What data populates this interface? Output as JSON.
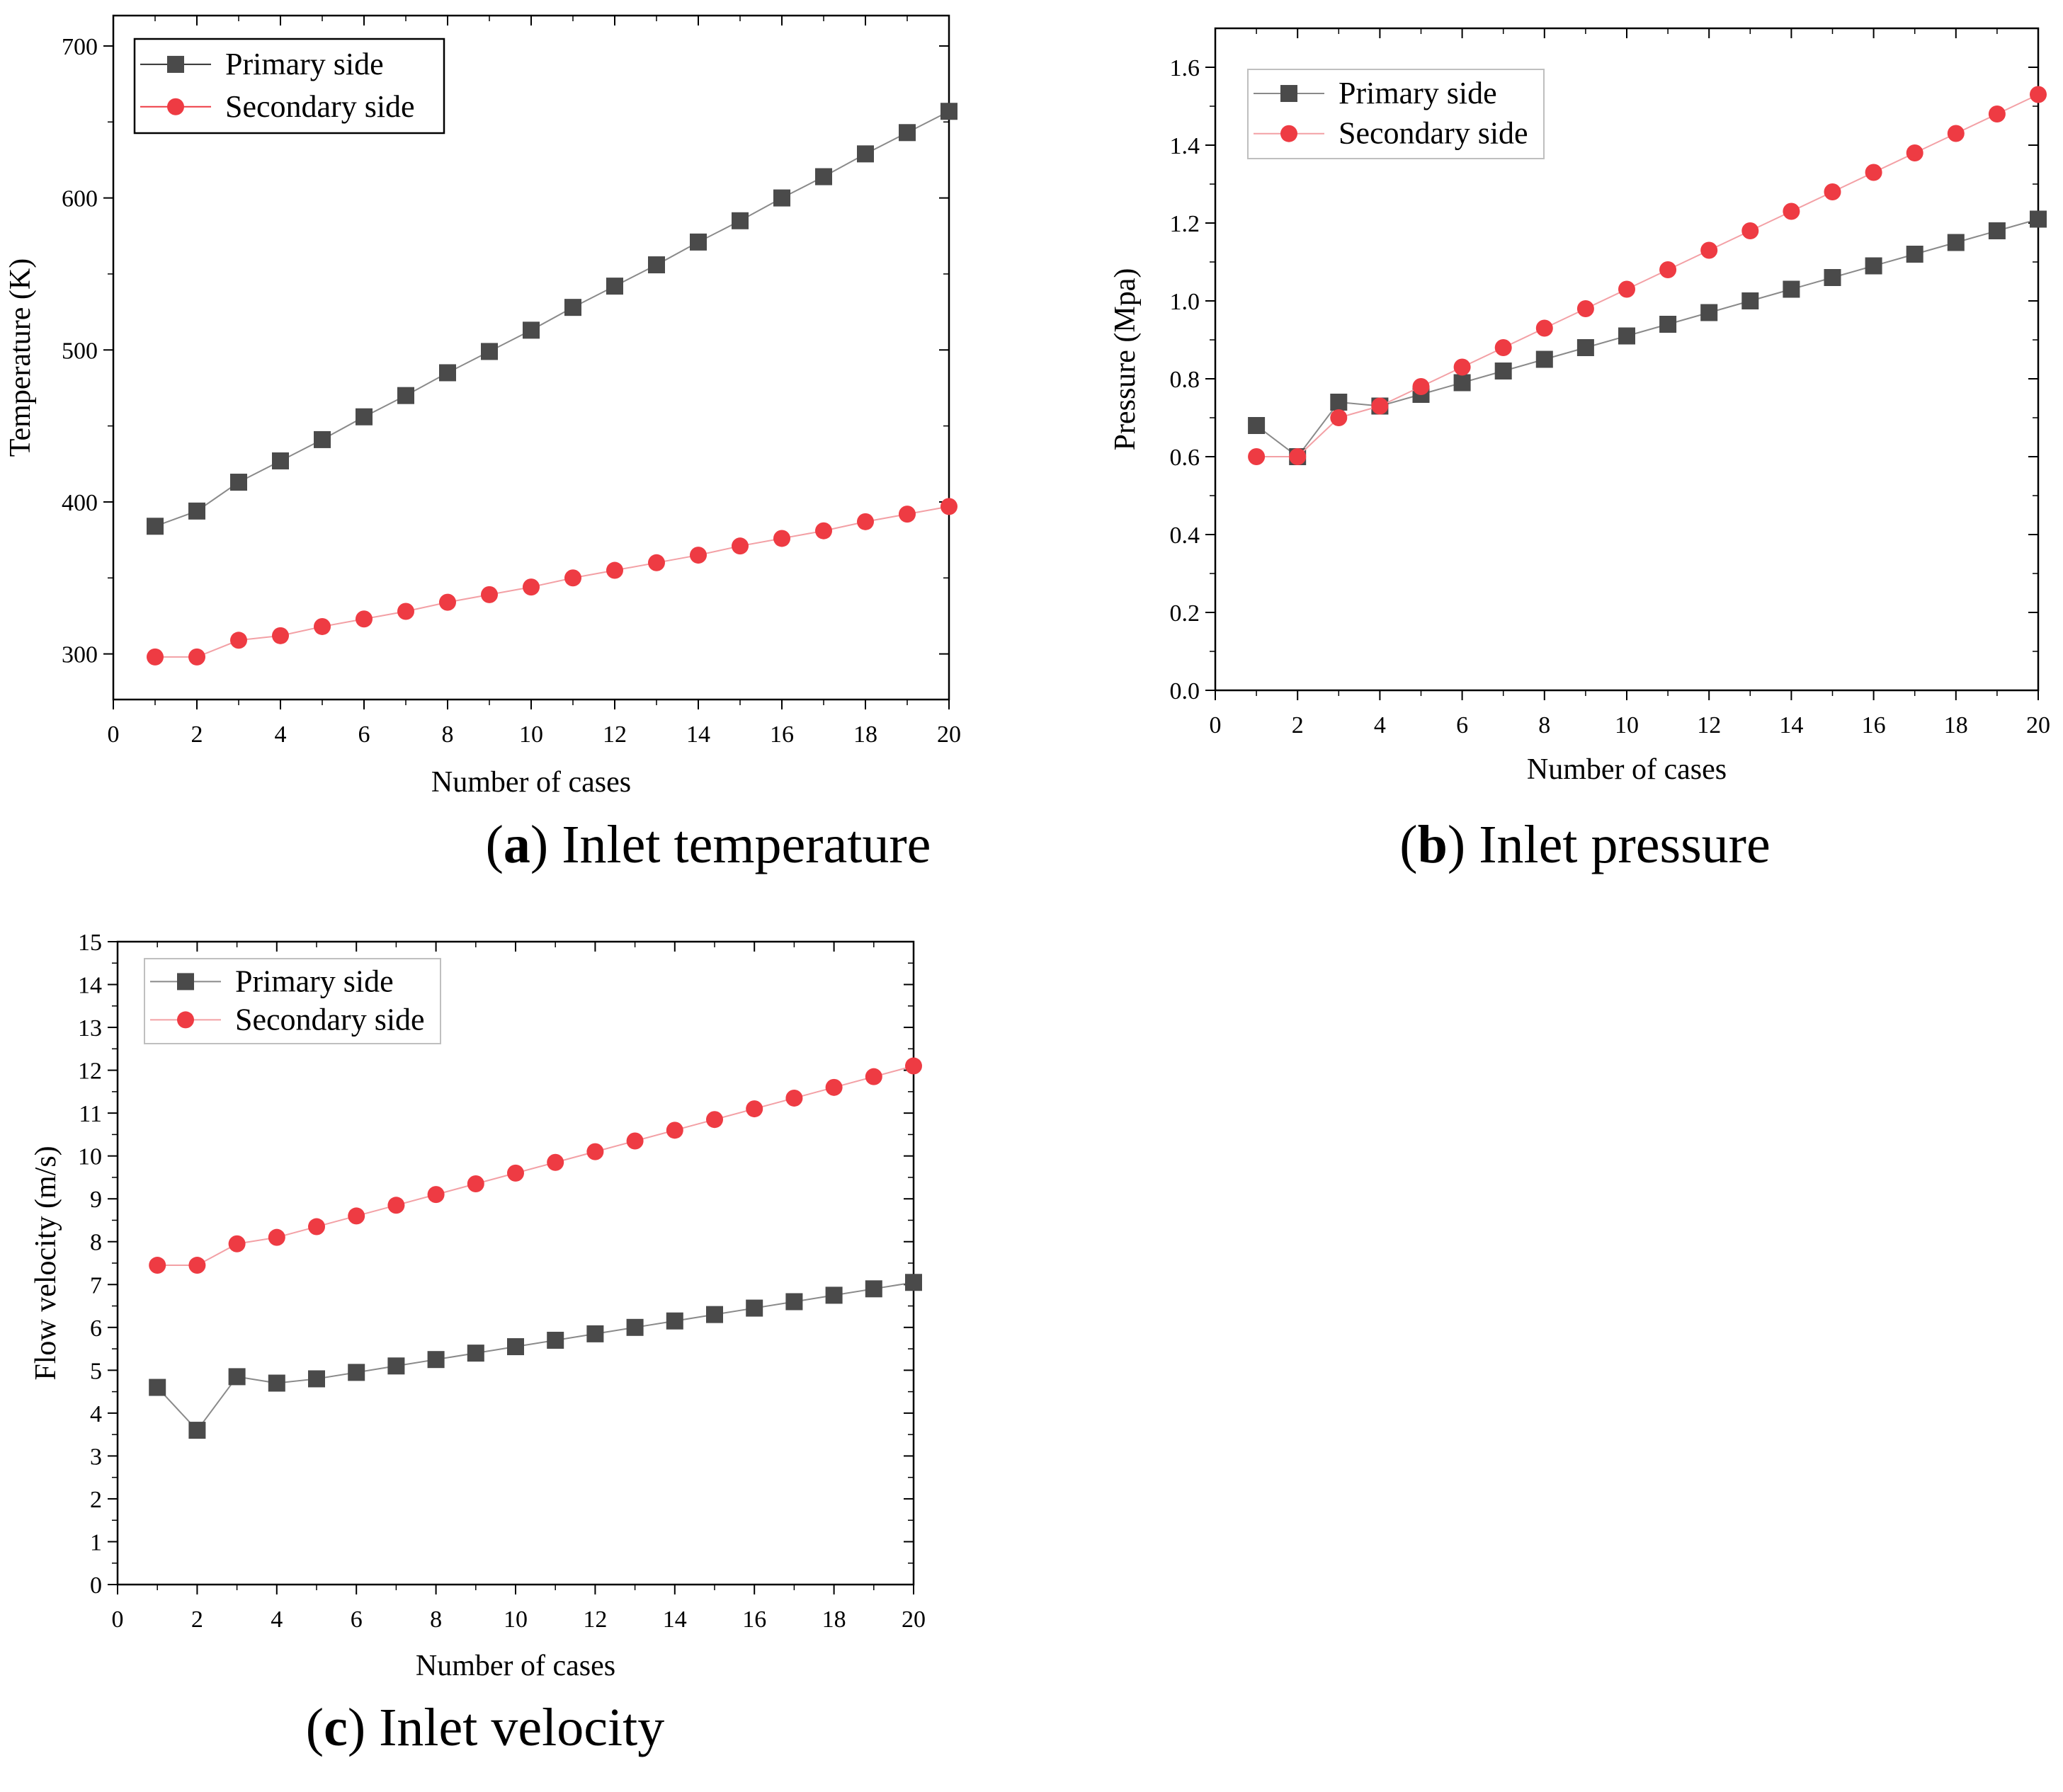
{
  "chart_data": [
    {
      "type": "line",
      "caption_letter": "a",
      "caption_text": "Inlet temperature",
      "xlabel": "Number of cases",
      "ylabel": "Temperature (K)",
      "xlim": [
        0,
        20
      ],
      "ylim": [
        270,
        720
      ],
      "xticks": [
        0,
        2,
        4,
        6,
        8,
        10,
        12,
        14,
        16,
        18,
        20
      ],
      "xtick_labels": [
        "0",
        "2",
        "4",
        "6",
        "8",
        "10",
        "12",
        "14",
        "16",
        "18",
        "20"
      ],
      "yticks": [
        300,
        400,
        500,
        600,
        700
      ],
      "ytick_labels": [
        "300",
        "400",
        "500",
        "600",
        "700"
      ],
      "legend_position": "top-left",
      "x": [
        1,
        2,
        3,
        4,
        5,
        6,
        7,
        8,
        9,
        10,
        11,
        12,
        13,
        14,
        15,
        16,
        17,
        18,
        19,
        20
      ],
      "series": [
        {
          "name": "Primary side",
          "marker": "square",
          "color": "#4a4a4a",
          "values": [
            384,
            394,
            413,
            427,
            441,
            456,
            470,
            485,
            499,
            513,
            528,
            542,
            556,
            571,
            585,
            600,
            614,
            629,
            643,
            657
          ]
        },
        {
          "name": "Secondary side",
          "marker": "circle",
          "color": "#ee3b43",
          "values": [
            298,
            298,
            309,
            312,
            318,
            323,
            328,
            334,
            339,
            344,
            350,
            355,
            360,
            365,
            371,
            376,
            381,
            387,
            392,
            397
          ]
        }
      ]
    },
    {
      "type": "line",
      "caption_letter": "b",
      "caption_text": "Inlet pressure",
      "xlabel": "Number of cases",
      "ylabel": "Pressure (Mpa)",
      "xlim": [
        0,
        20
      ],
      "ylim": [
        0,
        1.7
      ],
      "xticks": [
        0,
        2,
        4,
        6,
        8,
        10,
        12,
        14,
        16,
        18,
        20
      ],
      "xtick_labels": [
        "0",
        "2",
        "4",
        "6",
        "8",
        "10",
        "12",
        "14",
        "16",
        "18",
        "20"
      ],
      "yticks": [
        0,
        0.2,
        0.4,
        0.6,
        0.8,
        1.0,
        1.2,
        1.4,
        1.6
      ],
      "ytick_labels": [
        "0.0",
        "0.2",
        "0.4",
        "0.6",
        "0.8",
        "1.0",
        "1.2",
        "1.4",
        "1.6"
      ],
      "legend_position": "top-left",
      "x": [
        1,
        2,
        3,
        4,
        5,
        6,
        7,
        8,
        9,
        10,
        11,
        12,
        13,
        14,
        15,
        16,
        17,
        18,
        19,
        20
      ],
      "series": [
        {
          "name": "Primary side",
          "marker": "square",
          "color": "#4a4a4a",
          "values": [
            0.68,
            0.6,
            0.74,
            0.73,
            0.76,
            0.79,
            0.82,
            0.85,
            0.88,
            0.91,
            0.94,
            0.97,
            1.0,
            1.03,
            1.06,
            1.09,
            1.12,
            1.15,
            1.18,
            1.21
          ]
        },
        {
          "name": "Secondary side",
          "marker": "circle",
          "color": "#ee3b43",
          "values": [
            0.6,
            0.6,
            0.7,
            0.73,
            0.78,
            0.83,
            0.88,
            0.93,
            0.98,
            1.03,
            1.08,
            1.13,
            1.18,
            1.23,
            1.28,
            1.33,
            1.38,
            1.43,
            1.48,
            1.53
          ]
        }
      ]
    },
    {
      "type": "line",
      "caption_letter": "c",
      "caption_text": "Inlet velocity",
      "xlabel": "Number of cases",
      "ylabel": "Flow velocity (m/s)",
      "xlim": [
        0,
        20
      ],
      "ylim": [
        0,
        15
      ],
      "xticks": [
        0,
        2,
        4,
        6,
        8,
        10,
        12,
        14,
        16,
        18,
        20
      ],
      "xtick_labels": [
        "0",
        "2",
        "4",
        "6",
        "8",
        "10",
        "12",
        "14",
        "16",
        "18",
        "20"
      ],
      "yticks": [
        0,
        1,
        2,
        3,
        4,
        5,
        6,
        7,
        8,
        9,
        10,
        11,
        12,
        13,
        14,
        15
      ],
      "ytick_labels": [
        "0",
        "1",
        "2",
        "3",
        "4",
        "5",
        "6",
        "7",
        "8",
        "9",
        "10",
        "11",
        "12",
        "13",
        "14",
        "15"
      ],
      "legend_position": "top-left",
      "x": [
        1,
        2,
        3,
        4,
        5,
        6,
        7,
        8,
        9,
        10,
        11,
        12,
        13,
        14,
        15,
        16,
        17,
        18,
        19,
        20
      ],
      "series": [
        {
          "name": "Primary side",
          "marker": "square",
          "color": "#4a4a4a",
          "values": [
            4.6,
            3.6,
            4.85,
            4.7,
            4.8,
            4.95,
            5.1,
            5.25,
            5.4,
            5.55,
            5.7,
            5.85,
            6.0,
            6.15,
            6.3,
            6.45,
            6.6,
            6.75,
            6.9,
            7.05
          ]
        },
        {
          "name": "Secondary side",
          "marker": "circle",
          "color": "#ee3b43",
          "values": [
            7.45,
            7.45,
            7.95,
            8.1,
            8.35,
            8.6,
            8.85,
            9.1,
            9.35,
            9.6,
            9.85,
            10.1,
            10.35,
            10.6,
            10.85,
            11.1,
            11.35,
            11.6,
            11.85,
            12.1
          ]
        }
      ]
    }
  ]
}
